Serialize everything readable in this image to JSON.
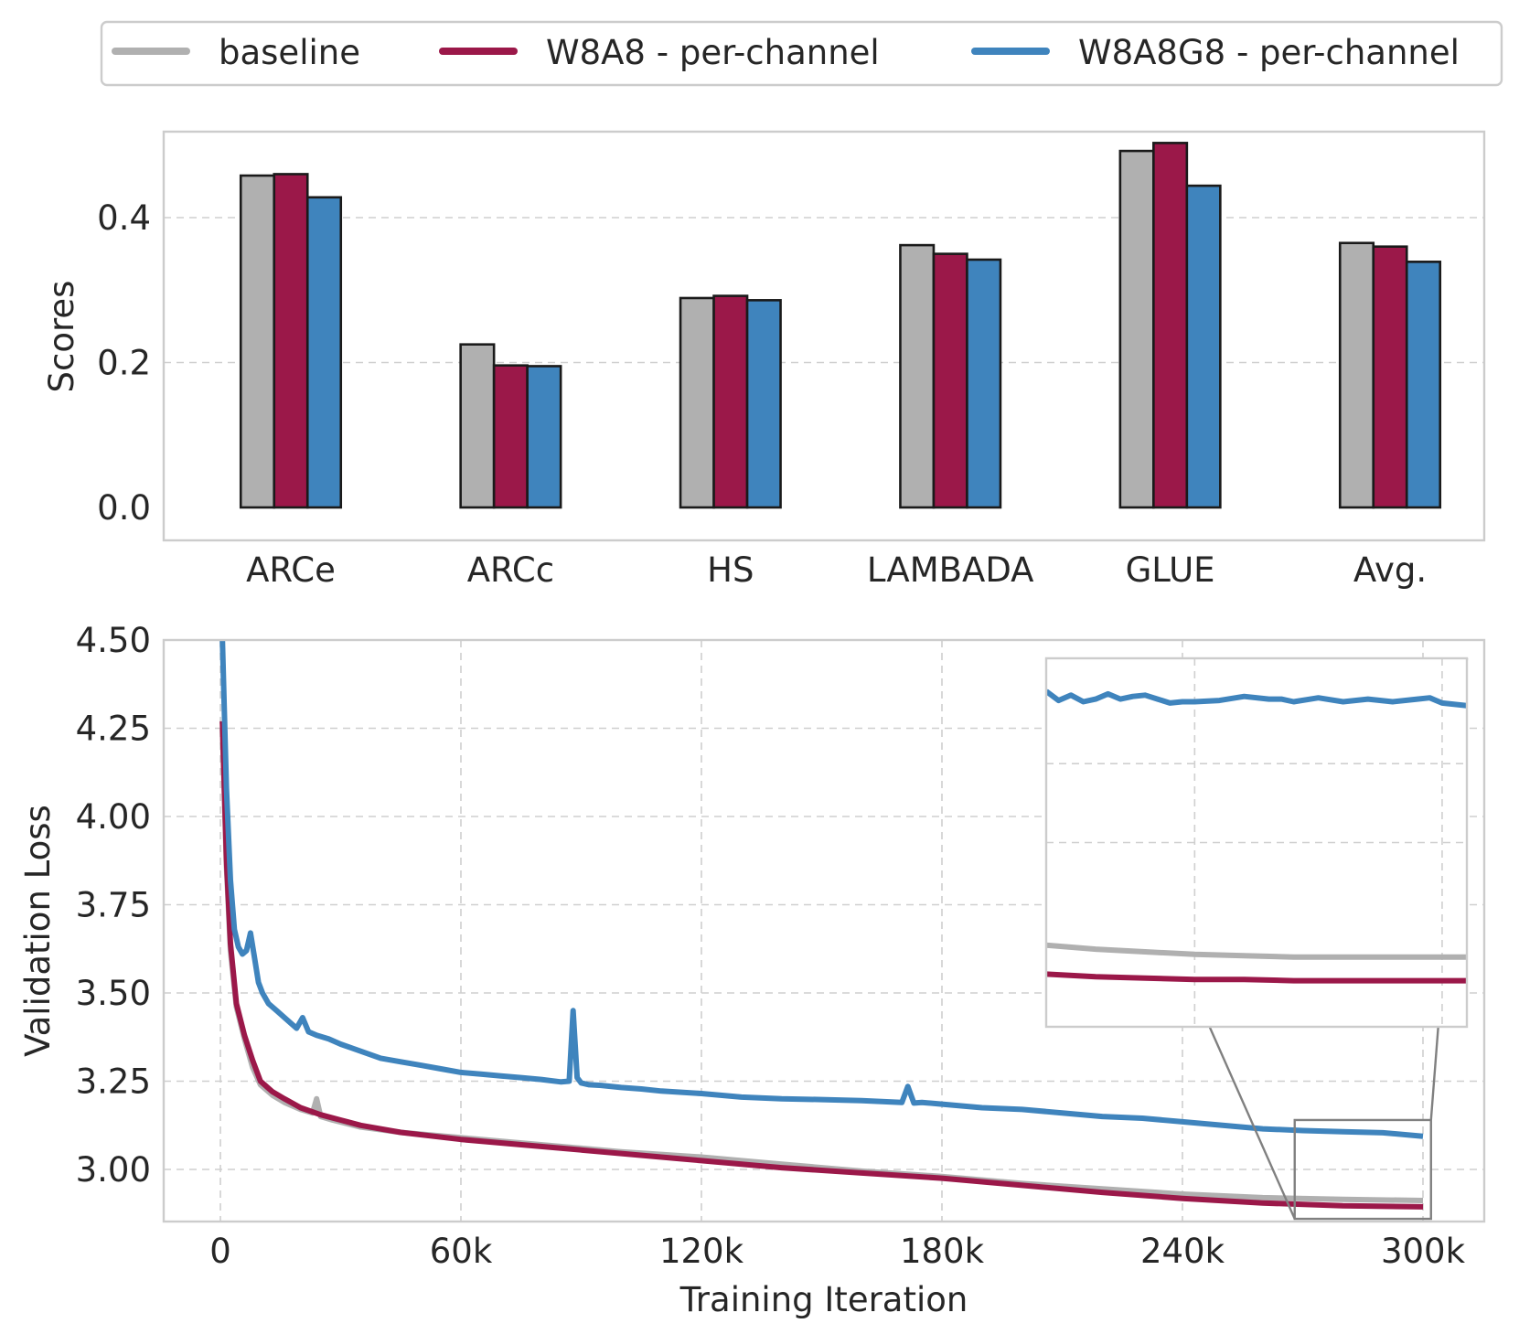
{
  "colors": {
    "baseline": "#b0b0b0",
    "w8a8": "#9b1849",
    "w8a8g8": "#3f84bd",
    "edge": "#1a1a1a",
    "inset_box": "#808080"
  },
  "legend": {
    "items": [
      {
        "label": "baseline",
        "color": "#b0b0b0"
      },
      {
        "label": "W8A8 - per-channel",
        "color": "#9b1849"
      },
      {
        "label": "W8A8G8 - per-channel",
        "color": "#3f84bd"
      }
    ]
  },
  "chart_data": [
    {
      "type": "bar",
      "ylabel": "Scores",
      "xlabel": "",
      "ylim": [
        0,
        0.52
      ],
      "yticks": [
        "0.0",
        "0.2",
        "0.4"
      ],
      "yticks_values": [
        0,
        0.2,
        0.4
      ],
      "grid": "horizontal dashed",
      "categories": [
        "ARCe",
        "ARCc",
        "HS",
        "LAMBADA",
        "GLUE",
        "Avg."
      ],
      "series": [
        {
          "name": "baseline",
          "values": [
            0.458,
            0.225,
            0.289,
            0.362,
            0.492,
            0.365
          ]
        },
        {
          "name": "W8A8 - per-channel",
          "values": [
            0.46,
            0.196,
            0.292,
            0.35,
            0.503,
            0.36
          ]
        },
        {
          "name": "W8A8G8 - per-channel",
          "values": [
            0.428,
            0.195,
            0.286,
            0.342,
            0.444,
            0.339
          ]
        }
      ]
    },
    {
      "type": "line",
      "xlabel": "Training Iteration",
      "ylabel": "Validation Loss",
      "xlim": [
        -14000,
        315000
      ],
      "ylim": [
        2.87,
        4.5
      ],
      "xticks": [
        "0",
        "60k",
        "120k",
        "180k",
        "240k",
        "300k"
      ],
      "xticks_values": [
        0,
        60000,
        120000,
        180000,
        240000,
        300000
      ],
      "yticks": [
        "3.00",
        "3.25",
        "3.50",
        "3.75",
        "4.00",
        "4.25",
        "4.50"
      ],
      "yticks_values": [
        3.0,
        3.25,
        3.5,
        3.75,
        4.0,
        4.25,
        4.5
      ],
      "grid": "dashed",
      "series": [
        {
          "name": "baseline",
          "x": [
            500,
            1500,
            2500,
            4000,
            6000,
            8000,
            10000,
            13000,
            16000,
            20000,
            23000,
            24000,
            25000,
            28000,
            35000,
            45000,
            60000,
            80000,
            100000,
            120000,
            140000,
            160000,
            180000,
            200000,
            220000,
            240000,
            260000,
            280000,
            300000
          ],
          "y": [
            4.25,
            3.86,
            3.62,
            3.46,
            3.37,
            3.29,
            3.24,
            3.21,
            3.19,
            3.17,
            3.16,
            3.2,
            3.15,
            3.14,
            3.12,
            3.105,
            3.09,
            3.07,
            3.05,
            3.035,
            3.015,
            2.995,
            2.98,
            2.96,
            2.945,
            2.93,
            2.92,
            2.915,
            2.912
          ]
        },
        {
          "name": "W8A8 - per-channel",
          "x": [
            500,
            1500,
            2500,
            4000,
            6000,
            8000,
            10000,
            13000,
            16000,
            20000,
            25000,
            30000,
            35000,
            45000,
            60000,
            80000,
            100000,
            120000,
            140000,
            160000,
            180000,
            200000,
            220000,
            240000,
            260000,
            280000,
            300000
          ],
          "y": [
            4.27,
            3.88,
            3.64,
            3.47,
            3.38,
            3.31,
            3.25,
            3.22,
            3.2,
            3.175,
            3.155,
            3.14,
            3.125,
            3.105,
            3.085,
            3.065,
            3.045,
            3.025,
            3.005,
            2.99,
            2.975,
            2.955,
            2.935,
            2.918,
            2.905,
            2.897,
            2.894
          ]
        },
        {
          "name": "W8A8G8 - per-channel",
          "x": [
            500,
            1500,
            2500,
            3500,
            4500,
            5500,
            6500,
            7500,
            8500,
            9500,
            10500,
            12000,
            14000,
            17000,
            19000,
            20500,
            22000,
            24000,
            27000,
            30000,
            35000,
            40000,
            45000,
            50000,
            55000,
            60000,
            65000,
            70000,
            75000,
            80000,
            85000,
            87000,
            88000,
            89000,
            90000,
            92000,
            95000,
            100000,
            105000,
            110000,
            120000,
            130000,
            140000,
            150000,
            160000,
            170000,
            171500,
            173000,
            175000,
            180000,
            190000,
            200000,
            210000,
            220000,
            230000,
            240000,
            250000,
            260000,
            270000,
            280000,
            290000,
            300000
          ],
          "y": [
            4.5,
            4.08,
            3.82,
            3.68,
            3.63,
            3.61,
            3.62,
            3.67,
            3.6,
            3.53,
            3.5,
            3.47,
            3.45,
            3.42,
            3.4,
            3.43,
            3.39,
            3.38,
            3.37,
            3.355,
            3.335,
            3.315,
            3.305,
            3.295,
            3.285,
            3.275,
            3.27,
            3.265,
            3.26,
            3.255,
            3.248,
            3.25,
            3.45,
            3.26,
            3.245,
            3.24,
            3.238,
            3.232,
            3.228,
            3.222,
            3.215,
            3.205,
            3.2,
            3.198,
            3.195,
            3.19,
            3.235,
            3.188,
            3.19,
            3.185,
            3.175,
            3.17,
            3.16,
            3.15,
            3.145,
            3.135,
            3.125,
            3.115,
            3.11,
            3.107,
            3.104,
            3.094
          ]
        }
      ],
      "inset": {
        "xlim": [
          268000,
          302000
        ],
        "ylim": [
          2.86,
          3.14
        ],
        "series": [
          {
            "name": "baseline",
            "x": [
              268000,
              272000,
              276000,
              280000,
              284000,
              288000,
              292000,
              296000,
              302000
            ],
            "y": [
              2.922,
              2.919,
              2.917,
              2.915,
              2.914,
              2.913,
              2.913,
              2.913,
              2.913
            ]
          },
          {
            "name": "W8A8 - per-channel",
            "x": [
              268000,
              272000,
              276000,
              280000,
              284000,
              288000,
              292000,
              296000,
              302000
            ],
            "y": [
              2.9,
              2.898,
              2.897,
              2.896,
              2.896,
              2.895,
              2.895,
              2.895,
              2.895
            ]
          },
          {
            "name": "W8A8G8 - per-channel",
            "x": [
              268000,
              269000,
              270000,
              271000,
              272000,
              273000,
              274000,
              275000,
              276000,
              277000,
              278000,
              279000,
              280000,
              282000,
              284000,
              286000,
              287000,
              288000,
              290000,
              292000,
              294000,
              296000,
              298000,
              299000,
              300000,
              302000
            ],
            "y": [
              3.115,
              3.108,
              3.112,
              3.107,
              3.109,
              3.113,
              3.109,
              3.111,
              3.112,
              3.109,
              3.106,
              3.107,
              3.107,
              3.108,
              3.111,
              3.109,
              3.109,
              3.107,
              3.11,
              3.107,
              3.109,
              3.107,
              3.109,
              3.11,
              3.106,
              3.104
            ]
          }
        ]
      }
    }
  ]
}
